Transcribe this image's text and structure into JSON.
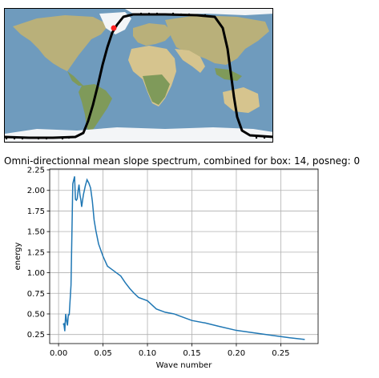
{
  "map": {
    "colors": {
      "ocean": "#6f9bbd",
      "deep_ocean": "#5a87ad",
      "land": "#b9b07a",
      "green": "#7f9a5a",
      "desert": "#d6c48e",
      "ice": "#f3f5f7",
      "track": "#000000",
      "marker": "#ff2020"
    }
  },
  "chart_data": {
    "type": "line",
    "title": "Omni-directionnal mean slope spectrum, combined for box: 14, posneg: 0",
    "xlabel": "Wave number",
    "ylabel": "energy",
    "xlim": [
      -0.01,
      0.292
    ],
    "ylim": [
      0.14,
      2.26
    ],
    "xticks": [
      {
        "v": 0.0,
        "label": "0.00"
      },
      {
        "v": 0.05,
        "label": "0.05"
      },
      {
        "v": 0.1,
        "label": "0.10"
      },
      {
        "v": 0.15,
        "label": "0.15"
      },
      {
        "v": 0.2,
        "label": "0.20"
      },
      {
        "v": 0.25,
        "label": "0.25"
      }
    ],
    "yticks": [
      {
        "v": 0.25,
        "label": "0.25"
      },
      {
        "v": 0.5,
        "label": "0.50"
      },
      {
        "v": 0.75,
        "label": "0.75"
      },
      {
        "v": 1.0,
        "label": "1.00"
      },
      {
        "v": 1.25,
        "label": "1.25"
      },
      {
        "v": 1.5,
        "label": "1.50"
      },
      {
        "v": 1.75,
        "label": "1.75"
      },
      {
        "v": 2.0,
        "label": "2.00"
      },
      {
        "v": 2.25,
        "label": "2.25"
      }
    ],
    "grid": true,
    "series": [
      {
        "color": "#1f77b4",
        "x": [
          0.005,
          0.006,
          0.007,
          0.008,
          0.009,
          0.01,
          0.011,
          0.012,
          0.014,
          0.016,
          0.018,
          0.019,
          0.02,
          0.021,
          0.022,
          0.023,
          0.024,
          0.025,
          0.026,
          0.027,
          0.028,
          0.03,
          0.032,
          0.034,
          0.036,
          0.038,
          0.04,
          0.042,
          0.045,
          0.05,
          0.055,
          0.06,
          0.065,
          0.07,
          0.075,
          0.08,
          0.085,
          0.09,
          0.1,
          0.105,
          0.11,
          0.12,
          0.13,
          0.135,
          0.15,
          0.165,
          0.18,
          0.2,
          0.22,
          0.24,
          0.26,
          0.277
        ],
        "y": [
          0.37,
          0.38,
          0.29,
          0.5,
          0.42,
          0.36,
          0.49,
          0.49,
          0.85,
          2.08,
          2.17,
          1.89,
          1.88,
          1.9,
          2.0,
          2.07,
          1.95,
          1.89,
          1.8,
          1.88,
          1.95,
          2.05,
          2.13,
          2.09,
          2.03,
          1.87,
          1.64,
          1.51,
          1.35,
          1.2,
          1.08,
          1.04,
          1.0,
          0.96,
          0.88,
          0.81,
          0.75,
          0.7,
          0.66,
          0.61,
          0.56,
          0.52,
          0.5,
          0.48,
          0.42,
          0.39,
          0.35,
          0.3,
          0.27,
          0.24,
          0.21,
          0.19
        ]
      }
    ]
  }
}
